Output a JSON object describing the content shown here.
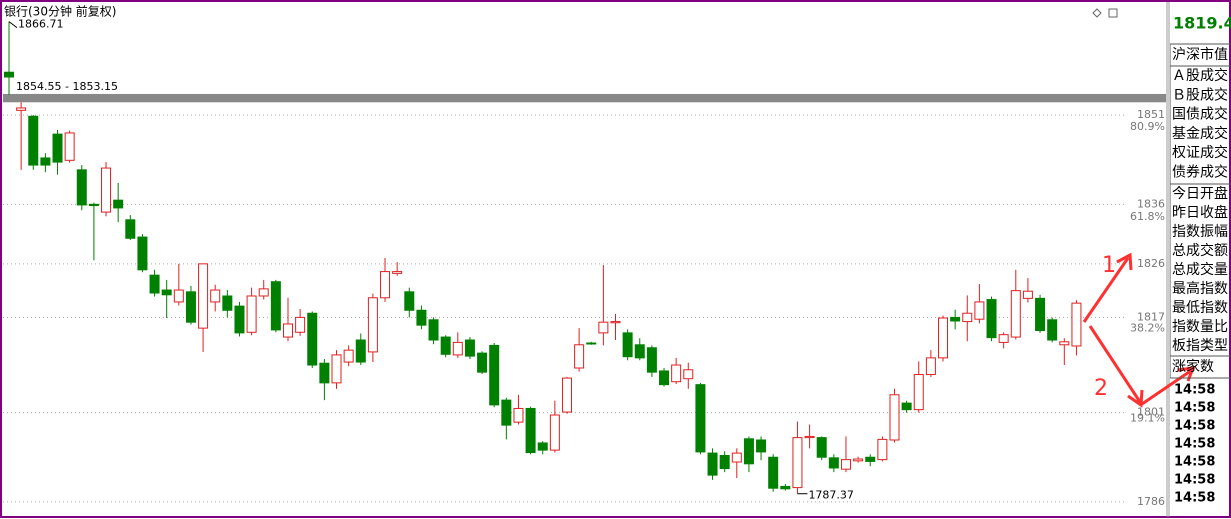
{
  "chart_data": {
    "type": "candlestick",
    "title": "银行(30分钟 前复权)",
    "open": [
      1858.2,
      1851.8,
      1850.8,
      1843.8,
      1847.8,
      1843.4,
      1841.8,
      1836.0,
      1834.7,
      1836.7,
      1833.4,
      1830.5,
      1824.1,
      1821.6,
      1819.6,
      1821.3,
      1815.2,
      1819.6,
      1820.6,
      1818.9,
      1814.5,
      1820.6,
      1823.0,
      1813.7,
      1814.5,
      1817.7,
      1809.3,
      1806.0,
      1809.5,
      1813.2,
      1811.2,
      1820.3,
      1824.4,
      1821.3,
      1818.2,
      1816.6,
      1813.7,
      1810.7,
      1813.2,
      1811.0,
      1812.3,
      1803.1,
      1799.4,
      1801.7,
      1795.9,
      1794.7,
      1801.1,
      1808.5,
      1812.7,
      1814.4,
      1816.1,
      1814.4,
      1812.4,
      1811.9,
      1808.0,
      1806.2,
      1806.7,
      1805.7,
      1794.2,
      1793.8,
      1792.7,
      1796.6,
      1796.4,
      1793.5,
      1788.6,
      1788.4,
      1796.8,
      1796.8,
      1793.4,
      1791.5,
      1792.9,
      1793.5,
      1793.1,
      1796.4,
      1802.6,
      1801.5,
      1807.4,
      1810.2,
      1817.0,
      1816.3,
      1816.7,
      1820.0,
      1812.8,
      1813.7,
      1820.2,
      1820.2,
      1816.6,
      1812.4,
      1812.2
    ],
    "high": [
      1866.71,
      1853.15,
      1851.0,
      1844.6,
      1848.5,
      1848.4,
      1842.6,
      1836.3,
      1843.1,
      1839.6,
      1834.2,
      1831.0,
      1825.0,
      1823.3,
      1826.0,
      1822.3,
      1826.0,
      1822.5,
      1821.6,
      1819.6,
      1822.0,
      1823.3,
      1823.3,
      1820.3,
      1818.4,
      1818.0,
      1810.0,
      1811.5,
      1812.3,
      1814.3,
      1821.0,
      1827.0,
      1826.3,
      1822.0,
      1819.0,
      1817.0,
      1814.0,
      1814.5,
      1813.7,
      1811.3,
      1812.7,
      1803.5,
      1804.0,
      1802.0,
      1796.2,
      1803.0,
      1807.0,
      1815.2,
      1812.9,
      1825.8,
      1817.6,
      1815.0,
      1813.5,
      1812.3,
      1808.5,
      1810.2,
      1809.4,
      1806.0,
      1795.0,
      1794.5,
      1795.0,
      1797.0,
      1797.0,
      1794.0,
      1789.0,
      1799.5,
      1799.0,
      1797.0,
      1794.0,
      1797.0,
      1793.6,
      1794.0,
      1797.0,
      1805.0,
      1803.0,
      1809.6,
      1811.5,
      1817.3,
      1818.3,
      1820.7,
      1822.6,
      1820.5,
      1814.5,
      1825.0,
      1823.6,
      1820.8,
      1817.0,
      1813.5,
      1819.9
    ],
    "low": [
      1854.4,
      1841.8,
      1841.8,
      1841.4,
      1841.0,
      1843.0,
      1835.0,
      1826.6,
      1834.0,
      1833.0,
      1830.0,
      1824.6,
      1820.5,
      1816.9,
      1819.0,
      1815.8,
      1811.2,
      1818.0,
      1817.0,
      1813.8,
      1814.0,
      1820.0,
      1814.5,
      1813.0,
      1813.9,
      1808.5,
      1803.1,
      1805.0,
      1808.8,
      1809.0,
      1809.5,
      1819.6,
      1824.0,
      1817.0,
      1815.0,
      1812.5,
      1810.3,
      1810.2,
      1810.0,
      1807.5,
      1801.9,
      1796.5,
      1799.0,
      1794.0,
      1794.0,
      1794.3,
      1800.8,
      1807.9,
      1812.4,
      1812.3,
      1813.2,
      1809.8,
      1809.8,
      1807.0,
      1805.4,
      1805.8,
      1805.0,
      1794.0,
      1789.7,
      1791.0,
      1790.0,
      1791.0,
      1793.0,
      1787.7,
      1787.9,
      1787.37,
      1795.0,
      1793.0,
      1791.0,
      1791.0,
      1792.6,
      1792.0,
      1792.8,
      1796.0,
      1801.0,
      1801.0,
      1807.0,
      1809.6,
      1815.0,
      1813.0,
      1816.0,
      1813.0,
      1811.8,
      1813.3,
      1819.5,
      1814.4,
      1812.8,
      1809.0,
      1810.6
    ],
    "close": [
      1857.4,
      1852.2,
      1842.6,
      1842.6,
      1843.1,
      1848.0,
      1835.9,
      1835.8,
      1842.1,
      1835.4,
      1830.3,
      1825.0,
      1821.1,
      1820.8,
      1821.6,
      1816.2,
      1826.0,
      1821.6,
      1818.2,
      1814.4,
      1820.6,
      1821.8,
      1814.9,
      1815.9,
      1817.0,
      1809.0,
      1806.0,
      1810.7,
      1811.5,
      1809.5,
      1820.3,
      1824.7,
      1824.7,
      1818.2,
      1815.7,
      1813.2,
      1810.8,
      1812.8,
      1810.5,
      1807.8,
      1802.3,
      1798.9,
      1801.7,
      1794.3,
      1794.7,
      1800.6,
      1806.8,
      1812.4,
      1812.6,
      1816.2,
      1816.3,
      1810.4,
      1810.2,
      1807.8,
      1805.7,
      1809.0,
      1808.2,
      1794.4,
      1790.5,
      1791.6,
      1794.2,
      1792.4,
      1794.4,
      1788.3,
      1788.2,
      1796.8,
      1797.0,
      1793.5,
      1791.7,
      1793.1,
      1793.2,
      1792.8,
      1796.5,
      1804.0,
      1801.5,
      1807.4,
      1810.2,
      1816.9,
      1816.4,
      1817.7,
      1819.6,
      1813.6,
      1814.1,
      1821.5,
      1821.4,
      1814.8,
      1813.2,
      1812.9,
      1819.4
    ],
    "up_color": "#e02020",
    "down_color": "#008000",
    "ylim": [
      1784.3,
      1869.5
    ],
    "yticks": [
      1851,
      1836,
      1826,
      1817,
      1801,
      1786
    ],
    "grid": true,
    "fib_levels": [
      {
        "value": 1851.56,
        "label": "80.9%"
      },
      {
        "value": 1836.4,
        "label": "61.8%"
      },
      {
        "value": 1817.68,
        "label": "38.2%"
      },
      {
        "value": 1802.52,
        "label": "19.1%"
      }
    ],
    "band": {
      "high": 1854.55,
      "low": 1853.15,
      "label": "1854.55 - 1853.15"
    },
    "max_label": 1866.71,
    "min_label": 1787.37,
    "arrow_labels": [
      "1",
      "2"
    ]
  },
  "side_panel": {
    "price": "1819.4",
    "header": "沪深市值",
    "group1": [
      "Ａ股成交",
      "Ｂ股成交",
      "国债成交",
      "基金成交",
      "权证成交",
      "债券成交"
    ],
    "group2": [
      "今日开盘",
      "昨日收盘",
      "指数振幅",
      "总成交额",
      "总成交量",
      "最高指数",
      "最低指数",
      "指数量比",
      "板指类型"
    ],
    "footer": "涨家数",
    "times": [
      "14:58",
      "14:58",
      "14:58",
      "14:58",
      "14:58",
      "14:58",
      "14:58"
    ]
  }
}
